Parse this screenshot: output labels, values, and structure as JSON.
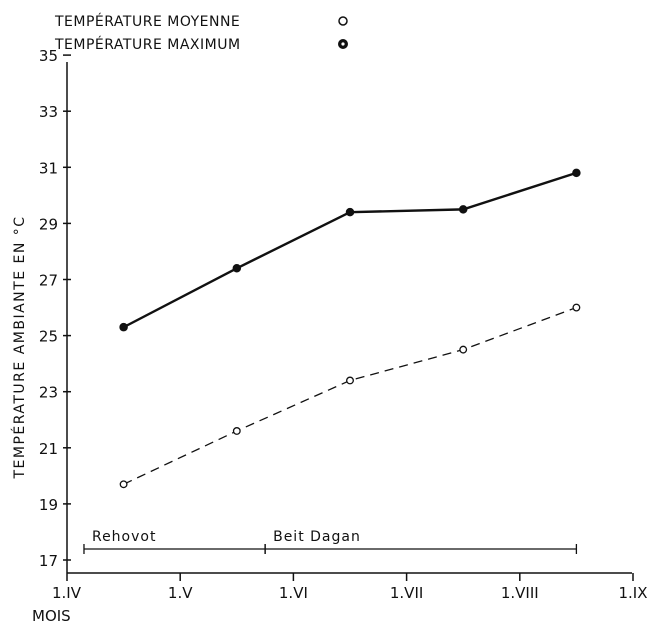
{
  "chart_data": {
    "type": "line",
    "title": "",
    "xlabel": "MOIS",
    "ylabel": "TEMPÉRATURE AMBIANTE EN °C",
    "x_ticks": [
      "1.IV",
      "1.V",
      "1.VI",
      "1.VII",
      "1.VIII",
      "1.IX"
    ],
    "y_ticks": [
      17,
      19,
      21,
      23,
      25,
      27,
      29,
      31,
      33,
      35
    ],
    "ylim": [
      17,
      35.5
    ],
    "xlim": [
      0,
      5
    ],
    "grid": false,
    "legend_position": "top-left",
    "series": [
      {
        "name": "TEMPÉRATURE MOYENNE",
        "marker": "open-circle",
        "line_style": "dashed",
        "color": "#111111",
        "points": [
          {
            "x": 0.5,
            "y": 19.7
          },
          {
            "x": 1.5,
            "y": 21.6
          },
          {
            "x": 2.5,
            "y": 23.4
          },
          {
            "x": 3.5,
            "y": 24.5
          },
          {
            "x": 4.5,
            "y": 26.0
          }
        ]
      },
      {
        "name": "TEMPÉRATURE MAXIMUM",
        "marker": "filled-circle",
        "line_style": "solid",
        "color": "#111111",
        "points": [
          {
            "x": 0.5,
            "y": 25.3
          },
          {
            "x": 1.5,
            "y": 27.4
          },
          {
            "x": 2.5,
            "y": 29.4
          },
          {
            "x": 3.5,
            "y": 29.5
          },
          {
            "x": 4.5,
            "y": 30.8
          }
        ]
      }
    ],
    "stations": [
      {
        "label": "Rehovot",
        "x_start": 0.15,
        "x_end": 1.75
      },
      {
        "label": "Beit Dagan",
        "x_start": 1.75,
        "x_end": 4.5
      }
    ]
  }
}
